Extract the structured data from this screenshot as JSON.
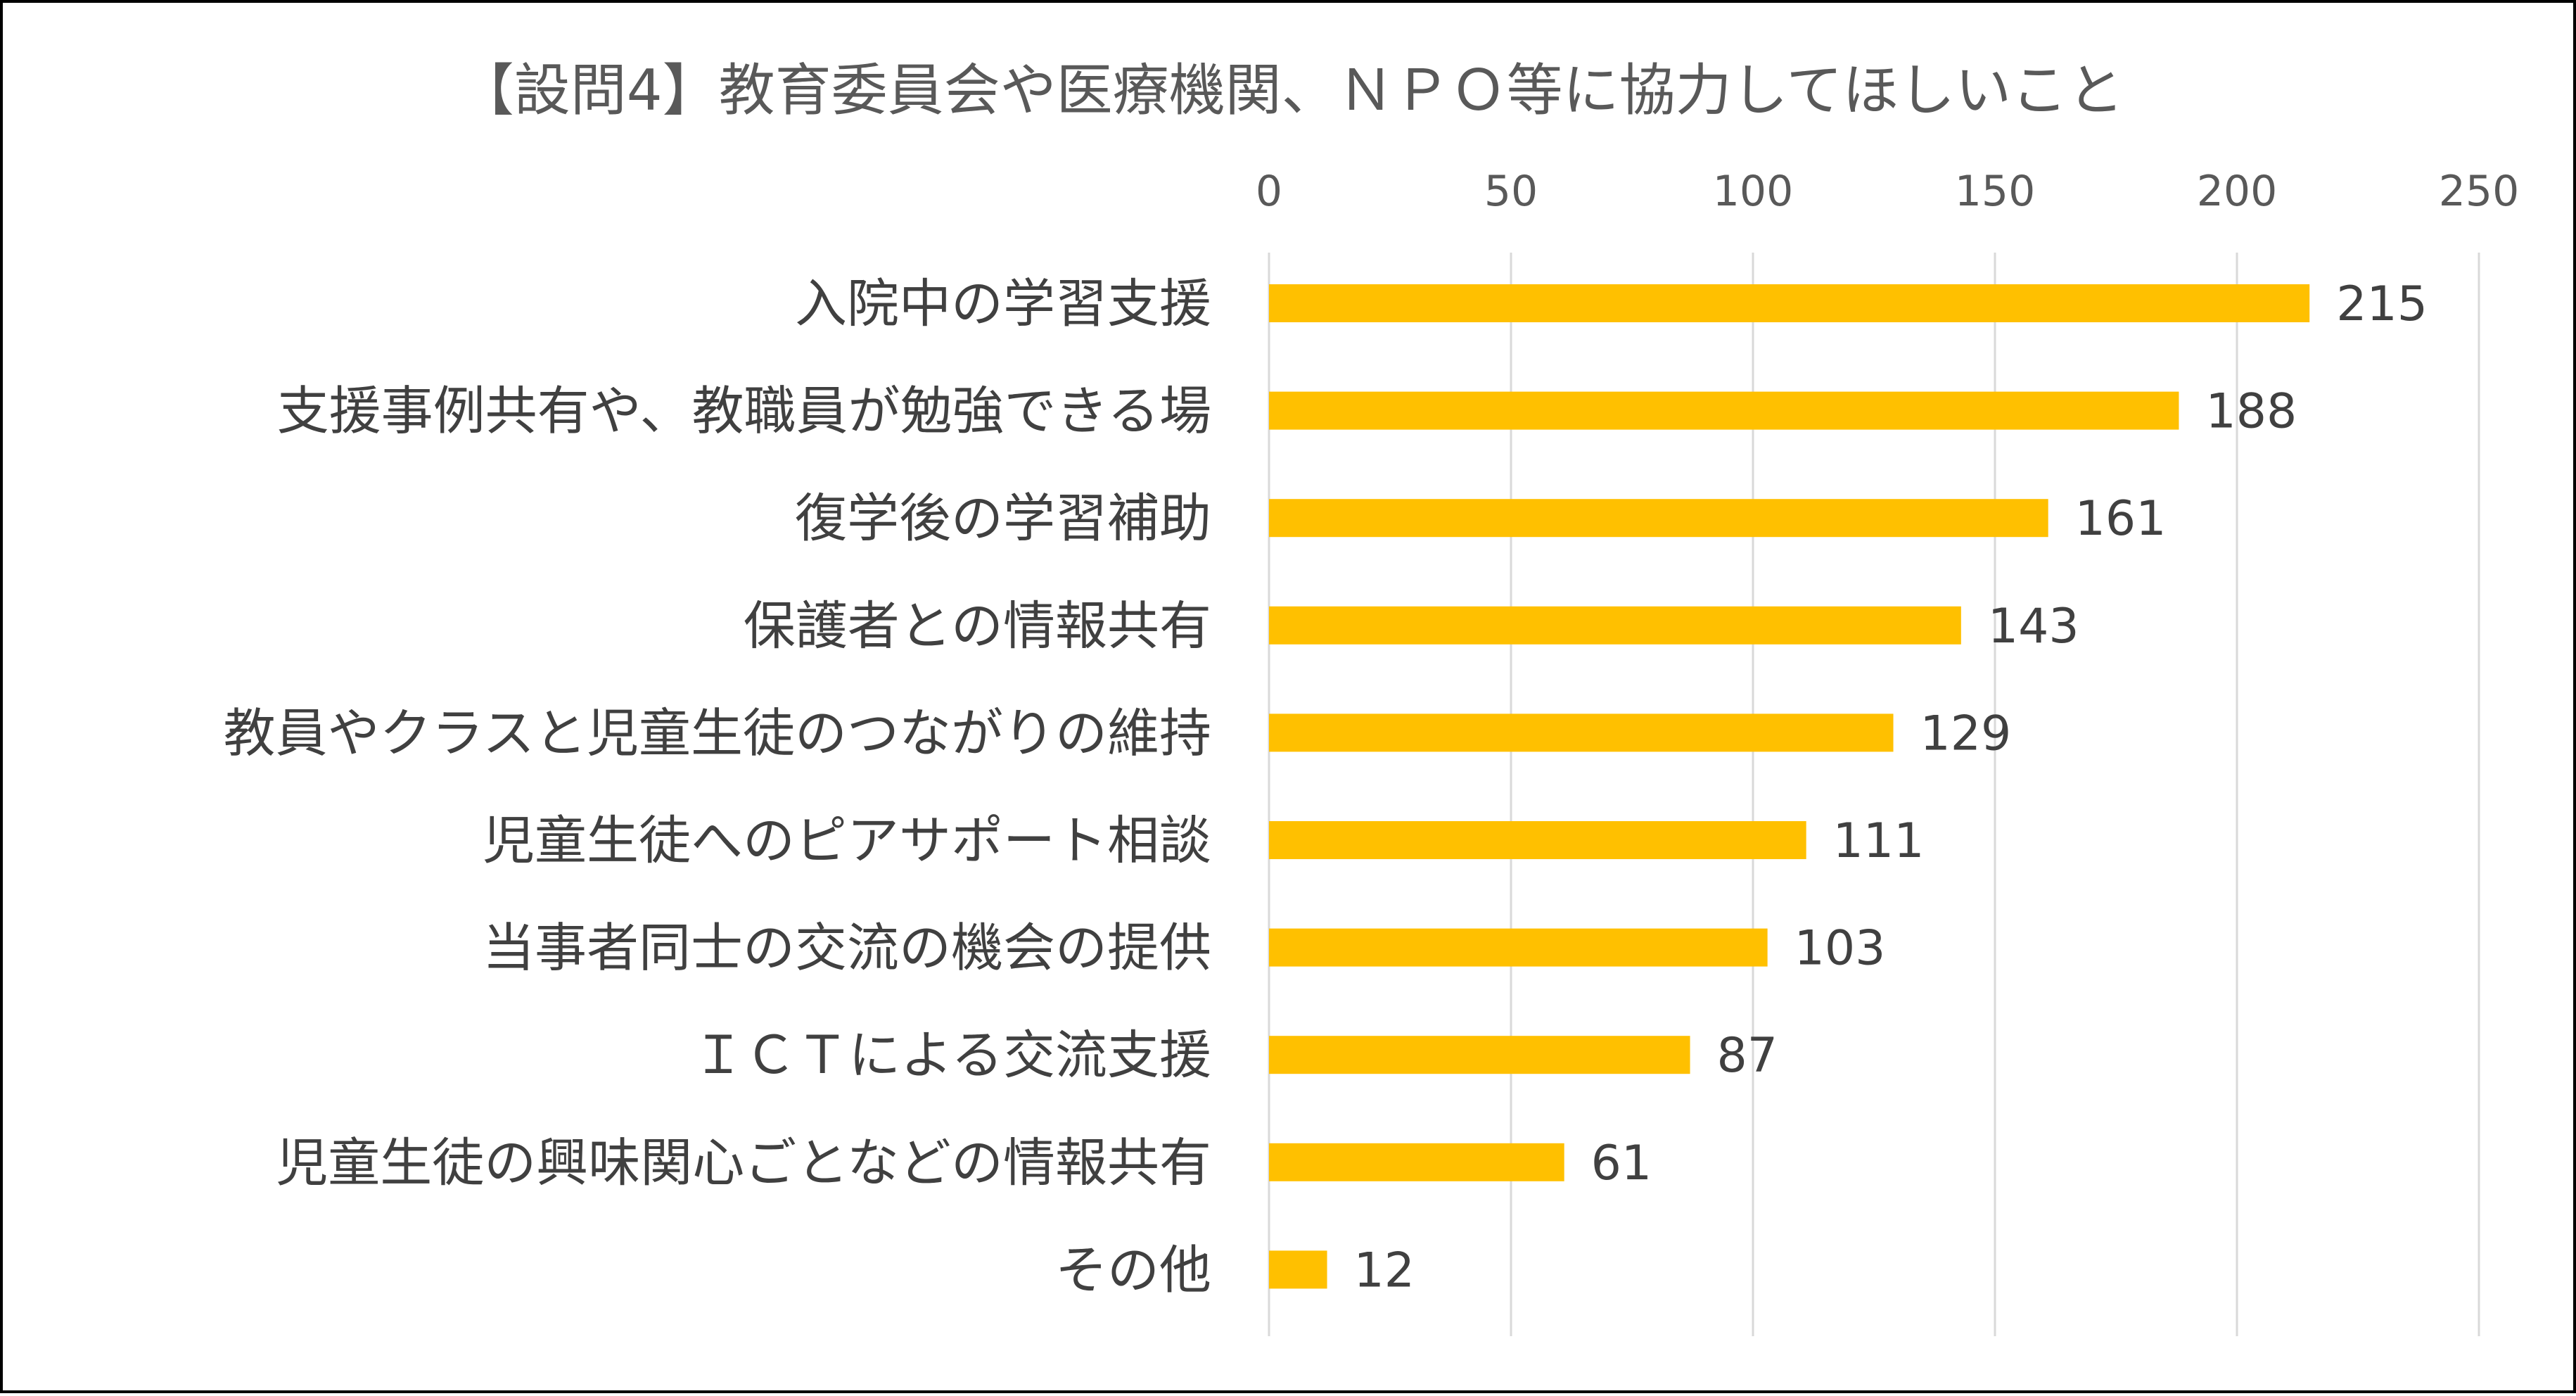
{
  "chart_data": {
    "type": "bar",
    "orientation": "horizontal",
    "title": "【設問4】教育委員会や医療機関、ＮＰＯ等に協力してほしいこと",
    "categories": [
      "入院中の学習支援",
      "支援事例共有や、教職員が勉強できる場",
      "復学後の学習補助",
      "保護者との情報共有",
      "教員やクラスと児童生徒のつながりの維持",
      "児童生徒へのピアサポート相談",
      "当事者同士の交流の機会の提供",
      "ＩＣＴによる交流支援",
      "児童生徒の興味関心ごとなどの情報共有",
      "その他"
    ],
    "values": [
      215,
      188,
      161,
      143,
      129,
      111,
      103,
      87,
      61,
      12
    ],
    "xlim": [
      0,
      250
    ],
    "xticks": [
      0,
      50,
      100,
      150,
      200,
      250
    ],
    "xlabel": "",
    "ylabel": "",
    "xaxis_position": "top",
    "grid": true,
    "data_labels": true,
    "legend": "none",
    "bar_color": "#FFC000"
  }
}
